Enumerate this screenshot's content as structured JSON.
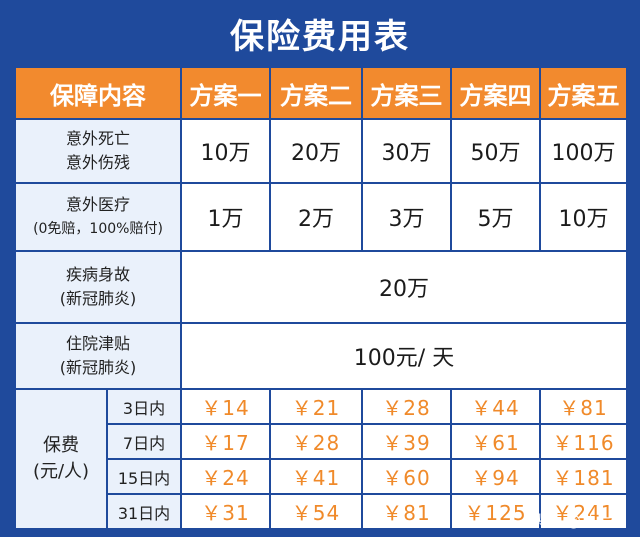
{
  "title": "保险费用表",
  "header": {
    "coverage": "保障内容",
    "plans": [
      "方案一",
      "方案二",
      "方案三",
      "方案四",
      "方案五"
    ]
  },
  "rows": [
    {
      "label_lines": [
        "意外死亡",
        "意外伤残"
      ],
      "values": [
        "10万",
        "20万",
        "30万",
        "50万",
        "100万"
      ]
    },
    {
      "label_lines": [
        "意外医疗",
        "(0免赔，100%赔付)"
      ],
      "values": [
        "1万",
        "2万",
        "3万",
        "5万",
        "10万"
      ]
    },
    {
      "label_lines": [
        "疾病身故",
        "(新冠肺炎)"
      ],
      "merged_value": "20万"
    },
    {
      "label_lines": [
        "住院津贴",
        "(新冠肺炎)"
      ],
      "merged_value": "100元/ 天"
    }
  ],
  "fees": {
    "label_lines": [
      "保费",
      "(元/人)"
    ],
    "durations": [
      {
        "label": "3日内",
        "prices": [
          "￥14",
          "￥21",
          "￥28",
          "￥44",
          "￥81"
        ]
      },
      {
        "label": "7日内",
        "prices": [
          "￥17",
          "￥28",
          "￥39",
          "￥61",
          "￥116"
        ]
      },
      {
        "label": "15日内",
        "prices": [
          "￥24",
          "￥41",
          "￥60",
          "￥94",
          "￥181"
        ]
      },
      {
        "label": "31日内",
        "prices": [
          "￥31",
          "￥54",
          "￥81",
          "￥125",
          "￥241"
        ]
      }
    ]
  },
  "watermark": "头条 @拍片保",
  "colors": {
    "background": "#1f4a9c",
    "header": "#f28a2e",
    "price": "#f08a2a"
  }
}
